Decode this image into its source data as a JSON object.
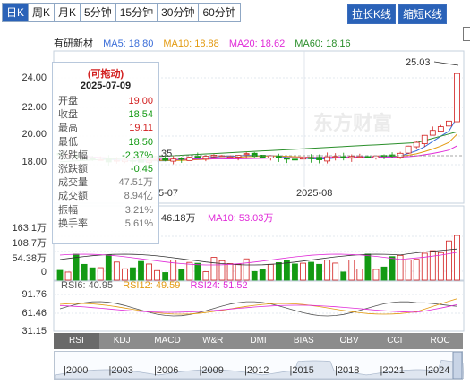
{
  "toolbar": {
    "tabs": [
      "日K",
      "周K",
      "月K",
      "5分钟",
      "15分钟",
      "30分钟",
      "60分钟"
    ],
    "active_tab": 0,
    "stretch_label": "拉长K线",
    "shrink_label": "缩短K线"
  },
  "ma_legend": {
    "prefix": "有研新材",
    "ma5": "MA5: 18.80",
    "ma10": "MA10: 18.88",
    "ma20": "MA20: 18.62",
    "ma60": "MA60: 18.16"
  },
  "colors": {
    "ma5": "#3a6dd8",
    "ma10": "#e39a10",
    "ma20": "#e02ad8",
    "ma60": "#2b8f2b",
    "up": "#d21e1e",
    "down": "#139a13"
  },
  "price_axis": [
    "24.00",
    "22.00",
    "20.00",
    "18.00"
  ],
  "max_label": "25.03",
  "min_label": "35",
  "date_labels": [
    "5-07",
    "2025-08"
  ],
  "popup": {
    "title": "(可拖动)",
    "date": "2025-07-09",
    "rows": [
      {
        "k": "开盘",
        "v": "19.00",
        "c": "up"
      },
      {
        "k": "收盘",
        "v": "18.54",
        "c": "dn"
      },
      {
        "k": "最高",
        "v": "19.11",
        "c": "up"
      },
      {
        "k": "最低",
        "v": "18.50",
        "c": "dn"
      },
      {
        "k": "涨跌幅",
        "v": "-2.37%",
        "c": "dn"
      },
      {
        "k": "涨跌额",
        "v": "-0.45",
        "c": "dn"
      },
      {
        "k": "成交量",
        "v": "47.51万",
        "c": "gy"
      },
      {
        "k": "成交额",
        "v": "8.94亿",
        "c": "gy"
      },
      {
        "k": "振幅",
        "v": "3.21%",
        "c": "gy"
      },
      {
        "k": "换手率",
        "v": "5.61%",
        "c": "gy"
      }
    ]
  },
  "volume": {
    "axis": [
      "163.1万",
      "108.7万",
      "54.38万",
      "0"
    ],
    "ma5_label": "46.18万",
    "ma10_label": "MA10: 53.03万"
  },
  "rsi": {
    "axis": [
      "91.76",
      "61.46",
      "31.15"
    ],
    "rsi6": "RSI6: 40.95",
    "rsi12": "RSI12: 49.59",
    "rsi24": "RSI24: 51.52"
  },
  "indicator_tabs": [
    "RSI",
    "KDJ",
    "MACD",
    "W&R",
    "DMI",
    "BIAS",
    "OBV",
    "CCI",
    "ROC"
  ],
  "timeline_years": [
    "2000",
    "2003",
    "2006",
    "2009",
    "2012",
    "2015",
    "2018",
    "2021",
    "2024"
  ],
  "watermark": "东方财富"
}
